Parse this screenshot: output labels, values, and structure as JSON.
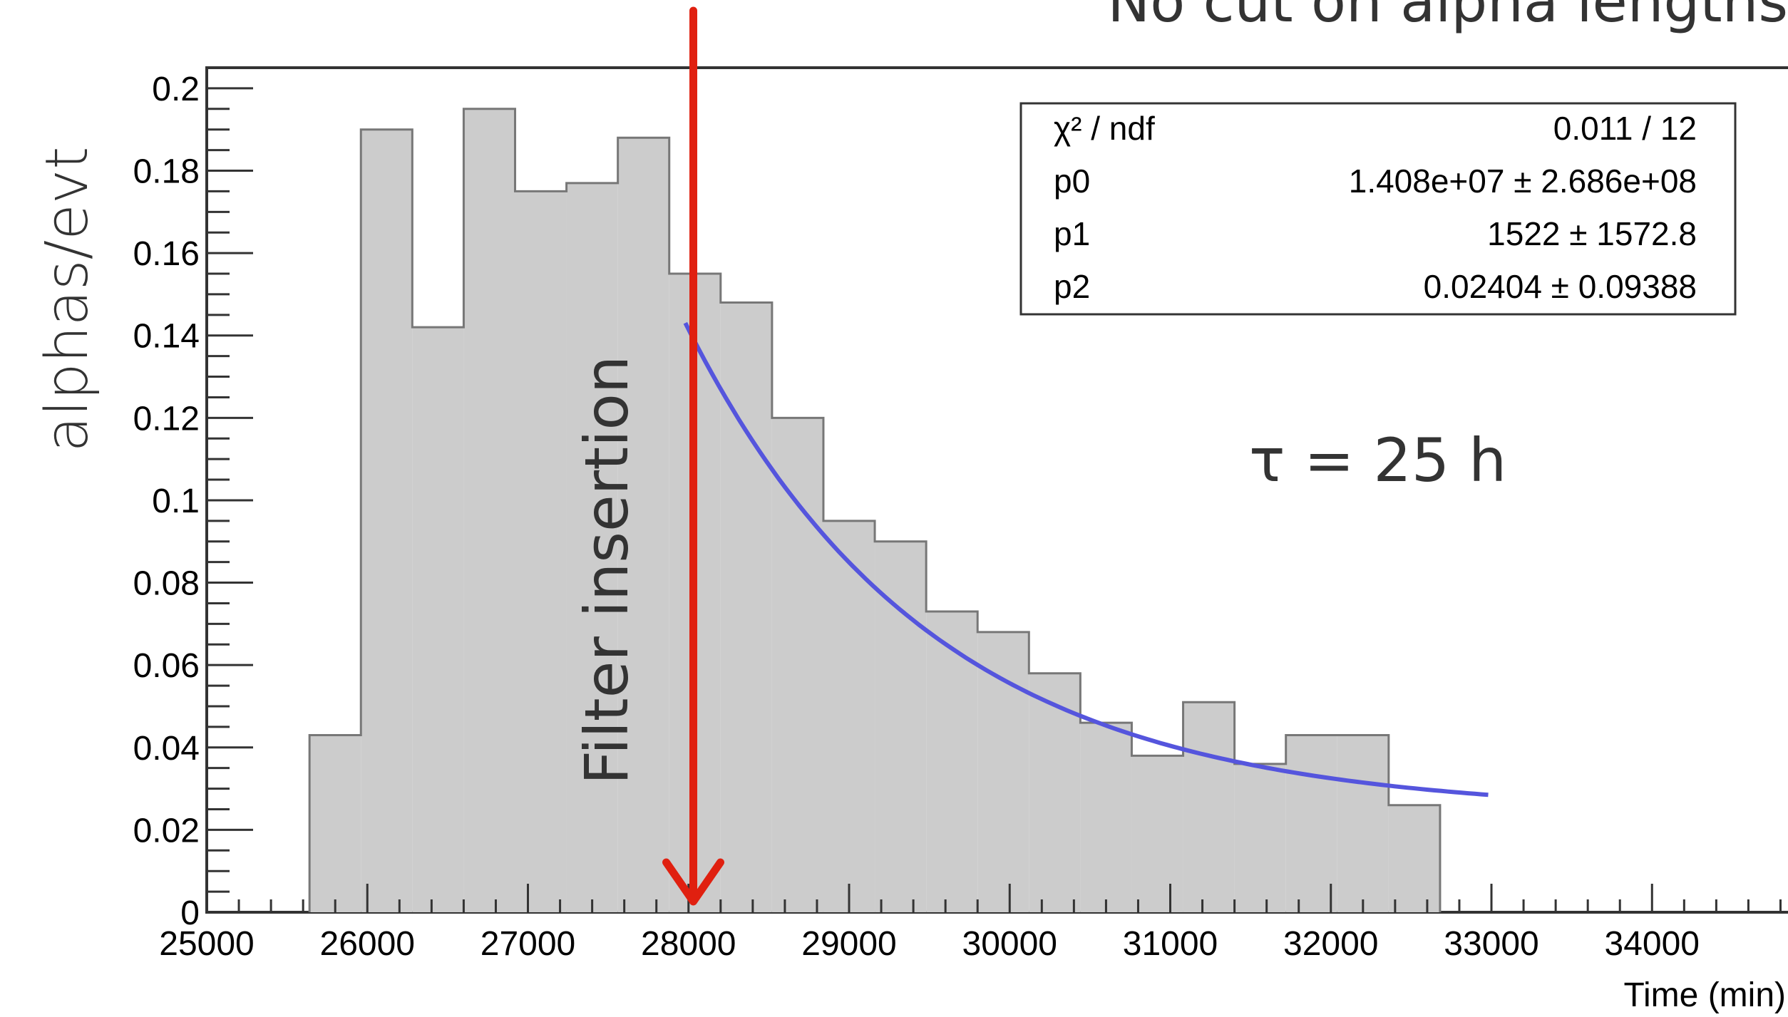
{
  "chart_data": {
    "type": "bar",
    "title": "No cut on alpha lengths",
    "xlabel": "Time (min)",
    "ylabel": "alphas/evt",
    "xlim": [
      25000,
      34900
    ],
    "ylim": [
      0,
      0.205
    ],
    "x_ticks": [
      25000,
      26000,
      27000,
      28000,
      29000,
      30000,
      31000,
      32000,
      33000,
      34000
    ],
    "x_tick_labels": [
      "25000",
      "26000",
      "27000",
      "28000",
      "29000",
      "30000",
      "31000",
      "32000",
      "33000",
      "34000"
    ],
    "y_ticks": [
      0,
      0.02,
      0.04,
      0.06,
      0.08,
      0.1,
      0.12,
      0.14,
      0.16,
      0.18,
      0.2
    ],
    "y_tick_labels": [
      "0",
      "0.02",
      "0.04",
      "0.06",
      "0.08",
      "0.1",
      "0.12",
      "0.14",
      "0.16",
      "0.18",
      "0.2"
    ],
    "histogram": {
      "bin_edges": [
        25640,
        25960,
        26280,
        26600,
        26920,
        27240,
        27560,
        27880,
        28200,
        28520,
        28840,
        29160,
        29480,
        29800,
        30120,
        30440,
        30760,
        31080,
        31400,
        31720,
        32040,
        32360,
        32680
      ],
      "values": [
        0.043,
        0.19,
        0.142,
        0.195,
        0.175,
        0.177,
        0.188,
        0.155,
        0.148,
        0.12,
        0.095,
        0.09,
        0.073,
        0.068,
        0.058,
        0.046,
        0.038,
        0.051,
        0.036,
        0.043,
        0.043,
        0.026
      ]
    },
    "fit": {
      "x_start": 27980,
      "x_end": 32980,
      "a": 0.119,
      "tau": 1522,
      "c": 0.02404
    },
    "stats_box": {
      "rows": [
        {
          "label": "χ² / ndf",
          "value": "0.011 / 12"
        },
        {
          "label": "p0",
          "value": "1.408e+07 ± 2.686e+08"
        },
        {
          "label": "p1",
          "value": "1522 ± 1572.8"
        },
        {
          "label": "p2",
          "value": "0.02404 ± 0.09388"
        }
      ]
    },
    "annotations": {
      "tau_text": "τ = 25 h",
      "filter_text": "Filter insertion",
      "filter_x": 28030
    },
    "colors": {
      "fill": "#cccccc",
      "outline": "#777777",
      "fit": "#5555dd",
      "marker": "#e02010"
    }
  }
}
